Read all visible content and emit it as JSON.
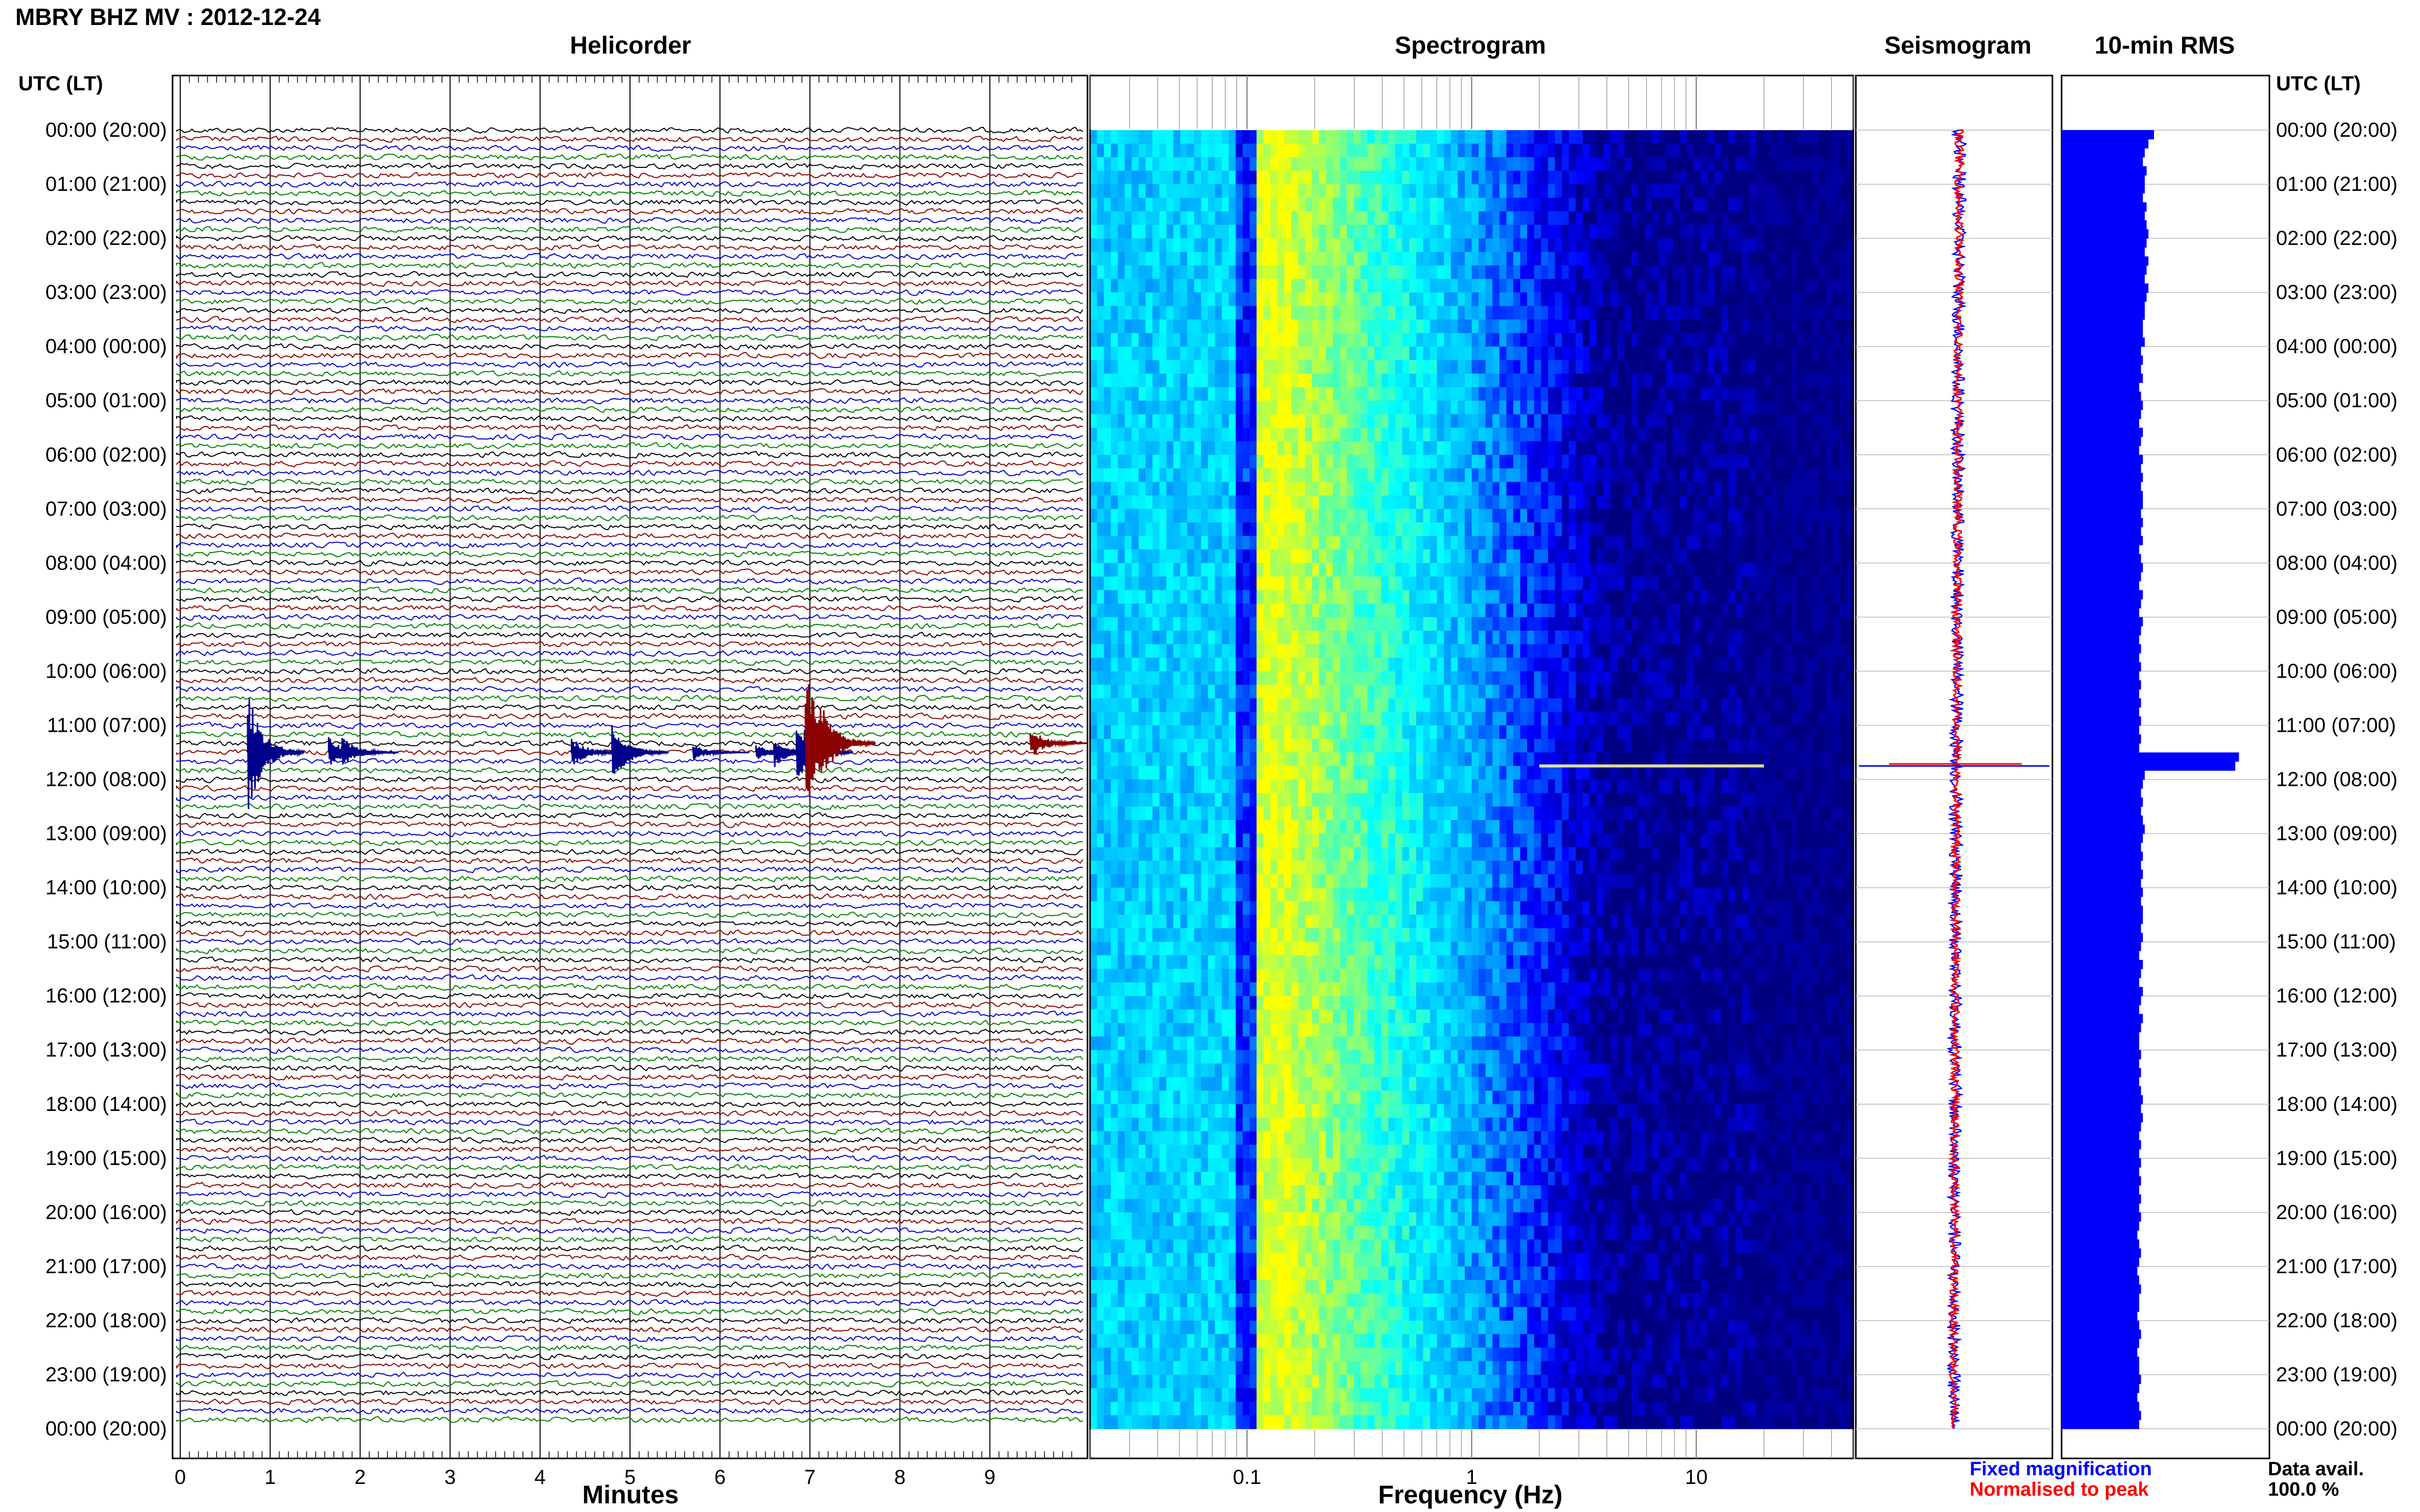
{
  "header": {
    "title": "MBRY BHZ MV : 2012-12-24"
  },
  "panels": {
    "helicorder": "Helicorder",
    "spectrogram": "Spectrogram",
    "seismogram": "Seismogram",
    "rms": "10-min RMS"
  },
  "axis": {
    "utc_left": "UTC (LT)",
    "utc_right": "UTC (LT)",
    "minutes_label": "Minutes",
    "frequency_label": "Frequency (Hz)"
  },
  "legend": {
    "fixed": "Fixed magnification",
    "normalised": "Normalised to peak",
    "fixed_color": "#0000ff",
    "normalised_color": "#ff0000"
  },
  "availability": {
    "label": "Data avail.",
    "value": "100.0 %"
  },
  "chart_data": [
    {
      "type": "line",
      "name": "helicorder",
      "title": "Helicorder",
      "xlabel": "Minutes",
      "x_ticks": [
        "0",
        "1",
        "2",
        "3",
        "4",
        "5",
        "6",
        "7",
        "8",
        "9"
      ],
      "xlim": [
        0,
        10
      ],
      "trace_colors": [
        "#000000",
        "#8b0000",
        "#0000cc",
        "#008000"
      ],
      "rows_per_hour": 6,
      "hours": 24,
      "events": [
        {
          "hour_utc": 11.5,
          "minute": 0.75,
          "amplitude": 8,
          "color": "#00008b"
        },
        {
          "hour_utc": 11.5,
          "minute": 1.65,
          "amplitude": 2,
          "color": "#00008b"
        },
        {
          "hour_utc": 11.5,
          "minute": 1.8,
          "amplitude": 2,
          "color": "#00008b"
        },
        {
          "hour_utc": 11.5,
          "minute": 4.35,
          "amplitude": 2,
          "color": "#00008b"
        },
        {
          "hour_utc": 11.5,
          "minute": 4.8,
          "amplitude": 4,
          "color": "#00008b"
        },
        {
          "hour_utc": 11.5,
          "minute": 5.7,
          "amplitude": 1,
          "color": "#00008b"
        },
        {
          "hour_utc": 11.5,
          "minute": 6.4,
          "amplitude": 1,
          "color": "#00008b"
        },
        {
          "hour_utc": 11.5,
          "minute": 6.6,
          "amplitude": 2,
          "color": "#00008b"
        },
        {
          "hour_utc": 11.5,
          "minute": 6.85,
          "amplitude": 5,
          "color": "#00008b"
        },
        {
          "hour_utc": 11.33,
          "minute": 6.95,
          "amplitude": 10,
          "color": "#8b0000"
        },
        {
          "hour_utc": 11.33,
          "minute": 7.1,
          "amplitude": 6,
          "color": "#8b0000"
        },
        {
          "hour_utc": 11.33,
          "minute": 9.45,
          "amplitude": 2,
          "color": "#8b0000"
        }
      ]
    },
    {
      "type": "heatmap",
      "name": "spectrogram",
      "title": "Spectrogram",
      "xlabel": "Frequency (Hz)",
      "x_scale": "log",
      "xlim": [
        0.02,
        50
      ],
      "x_ticks": [
        "0.1",
        "1",
        "10"
      ],
      "colormap": [
        "#000080",
        "#0000ff",
        "#00a0ff",
        "#00ffff",
        "#80ff80",
        "#ffff00"
      ],
      "event_hour_utc": 11.75,
      "event_band_hz": [
        2,
        20
      ]
    },
    {
      "type": "line",
      "name": "seismogram",
      "title": "Seismogram",
      "series": [
        {
          "name": "Fixed magnification",
          "color": "#0000ff"
        },
        {
          "name": "Normalised to peak",
          "color": "#ff0000"
        }
      ],
      "event_hour_utc": 11.75
    },
    {
      "type": "bar",
      "name": "rms",
      "title": "10-min RMS",
      "orientation": "horizontal",
      "color": "#0000ff",
      "xlim": [
        0,
        1
      ],
      "values": [
        0.5,
        0.47,
        0.45,
        0.44,
        0.46,
        0.45,
        0.45,
        0.44,
        0.46,
        0.45,
        0.46,
        0.47,
        0.46,
        0.45,
        0.47,
        0.46,
        0.45,
        0.47,
        0.46,
        0.45,
        0.45,
        0.44,
        0.44,
        0.45,
        0.43,
        0.44,
        0.43,
        0.44,
        0.42,
        0.43,
        0.44,
        0.43,
        0.42,
        0.44,
        0.43,
        0.42,
        0.44,
        0.43,
        0.44,
        0.43,
        0.44,
        0.44,
        0.43,
        0.44,
        0.43,
        0.44,
        0.42,
        0.43,
        0.44,
        0.43,
        0.42,
        0.44,
        0.43,
        0.42,
        0.44,
        0.43,
        0.42,
        0.43,
        0.42,
        0.43,
        0.42,
        0.43,
        0.42,
        0.43,
        0.42,
        0.43,
        0.42,
        0.43,
        0.42,
        0.96,
        0.94,
        0.45,
        0.44,
        0.43,
        0.44,
        0.43,
        0.44,
        0.45,
        0.44,
        0.43,
        0.44,
        0.43,
        0.44,
        0.43,
        0.44,
        0.43,
        0.44,
        0.44,
        0.43,
        0.44,
        0.43,
        0.42,
        0.44,
        0.43,
        0.42,
        0.44,
        0.43,
        0.42,
        0.44,
        0.43,
        0.42,
        0.42,
        0.43,
        0.42,
        0.43,
        0.42,
        0.43,
        0.44,
        0.43,
        0.44,
        0.43,
        0.42,
        0.43,
        0.42,
        0.43,
        0.42,
        0.43,
        0.42,
        0.43,
        0.42,
        0.43,
        0.42,
        0.41,
        0.42,
        0.43,
        0.42,
        0.41,
        0.42,
        0.43,
        0.42,
        0.42,
        0.41,
        0.42,
        0.43,
        0.42,
        0.41,
        0.42,
        0.42,
        0.43,
        0.42,
        0.41,
        0.42,
        0.43,
        0.42
      ]
    }
  ],
  "time_labels": [
    "00:00 (20:00)",
    "01:00 (21:00)",
    "02:00 (22:00)",
    "03:00 (23:00)",
    "04:00 (00:00)",
    "05:00 (01:00)",
    "06:00 (02:00)",
    "07:00 (03:00)",
    "08:00 (04:00)",
    "09:00 (05:00)",
    "10:00 (06:00)",
    "11:00 (07:00)",
    "12:00 (08:00)",
    "13:00 (09:00)",
    "14:00 (10:00)",
    "15:00 (11:00)",
    "16:00 (12:00)",
    "17:00 (13:00)",
    "18:00 (14:00)",
    "19:00 (15:00)",
    "20:00 (16:00)",
    "21:00 (17:00)",
    "22:00 (18:00)",
    "23:00 (19:00)",
    "00:00 (20:00)"
  ]
}
